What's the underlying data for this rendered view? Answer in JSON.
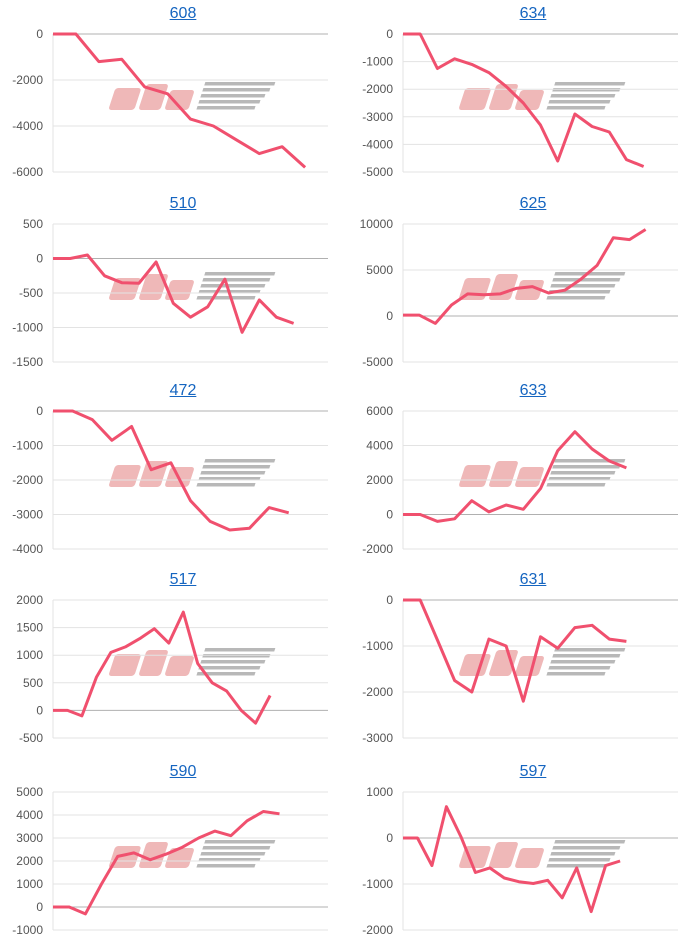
{
  "watermark": "みんレポ",
  "colors": {
    "line": "#f0506e",
    "title": "#1565c0",
    "grid": "#e3e3e3",
    "zero": "#b0b0b0",
    "tick": "#555555",
    "wm_pink": "#efb8b8",
    "wm_gray": "#b8b8b8"
  },
  "chart_data": [
    {
      "type": "line",
      "title": "608",
      "ylim": [
        -6000,
        0
      ],
      "yticks": [
        0,
        -2000,
        -4000,
        -6000
      ],
      "x_slots": 13,
      "values": [
        0,
        0,
        -1200,
        -1100,
        -2300,
        -2600,
        -3700,
        -4000,
        -4600,
        -5200,
        -4900,
        -5800
      ]
    },
    {
      "type": "line",
      "title": "634",
      "ylim": [
        -5000,
        0
      ],
      "yticks": [
        0,
        -1000,
        -2000,
        -3000,
        -4000,
        -5000
      ],
      "x_slots": 17,
      "values": [
        0,
        0,
        -1250,
        -900,
        -1100,
        -1400,
        -1900,
        -2500,
        -3300,
        -4600,
        -2900,
        -3350,
        -3550,
        -4550,
        -4800
      ]
    },
    {
      "type": "line",
      "title": "510",
      "ylim": [
        -1500,
        500
      ],
      "yticks": [
        500,
        0,
        -500,
        -1000,
        -1500
      ],
      "x_slots": 17,
      "values": [
        0,
        0,
        50,
        -250,
        -350,
        -360,
        -50,
        -650,
        -850,
        -700,
        -300,
        -1070,
        -600,
        -850,
        -940
      ]
    },
    {
      "type": "line",
      "title": "625",
      "ylim": [
        -5000,
        10000
      ],
      "yticks": [
        10000,
        5000,
        0,
        -5000
      ],
      "x_slots": 18,
      "values": [
        100,
        100,
        -800,
        1200,
        2400,
        2300,
        2400,
        3000,
        3200,
        2500,
        2800,
        4000,
        5500,
        8500,
        8300,
        9400
      ]
    },
    {
      "type": "line",
      "title": "472",
      "ylim": [
        -4000,
        0
      ],
      "yticks": [
        0,
        -1000,
        -2000,
        -3000,
        -4000
      ],
      "x_slots": 15,
      "values": [
        0,
        0,
        -250,
        -850,
        -450,
        -1700,
        -1500,
        -2600,
        -3200,
        -3450,
        -3400,
        -2800,
        -2950
      ]
    },
    {
      "type": "line",
      "title": "633",
      "ylim": [
        -2000,
        6000
      ],
      "yticks": [
        6000,
        4000,
        2000,
        0,
        -2000
      ],
      "x_slots": 17,
      "values": [
        0,
        0,
        -400,
        -250,
        800,
        150,
        550,
        300,
        1500,
        3700,
        4800,
        3800,
        3100,
        2700
      ]
    },
    {
      "type": "line",
      "title": "517",
      "ylim": [
        -500,
        2000
      ],
      "yticks": [
        2000,
        1500,
        1000,
        500,
        0,
        -500
      ],
      "x_slots": 20,
      "values": [
        0,
        0,
        -100,
        600,
        1050,
        1150,
        1300,
        1480,
        1220,
        1780,
        850,
        500,
        350,
        0,
        -230,
        270
      ]
    },
    {
      "type": "line",
      "title": "631",
      "ylim": [
        -3000,
        0
      ],
      "yticks": [
        0,
        -1000,
        -2000,
        -3000
      ],
      "x_slots": 17,
      "values": [
        0,
        0,
        -870,
        -1750,
        -2000,
        -850,
        -1000,
        -2200,
        -800,
        -1050,
        -600,
        -550,
        -850,
        -900
      ]
    },
    {
      "type": "line",
      "title": "590",
      "ylim": [
        -1000,
        5000
      ],
      "yticks": [
        5000,
        4000,
        3000,
        2000,
        1000,
        0,
        -1000
      ],
      "x_slots": 18,
      "values": [
        0,
        0,
        -300,
        1000,
        2200,
        2350,
        2050,
        2300,
        2600,
        3000,
        3300,
        3100,
        3750,
        4150,
        4050
      ]
    },
    {
      "type": "line",
      "title": "597",
      "ylim": [
        -2000,
        1000
      ],
      "yticks": [
        1000,
        0,
        -1000,
        -2000
      ],
      "x_slots": 20,
      "values": [
        0,
        0,
        -600,
        680,
        30,
        -750,
        -650,
        -870,
        -950,
        -990,
        -920,
        -1300,
        -650,
        -1600,
        -600,
        -500
      ]
    }
  ]
}
